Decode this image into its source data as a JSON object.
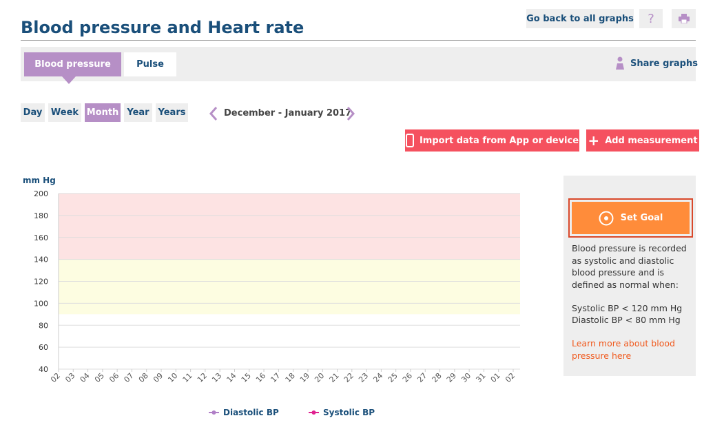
{
  "header": {
    "title": "Blood pressure and Heart rate",
    "back_button": "Go back to all graphs",
    "help_button": "?"
  },
  "tabs": {
    "items": [
      "Blood pressure",
      "Pulse"
    ],
    "share": "Share graphs"
  },
  "periods": {
    "items": [
      "Day",
      "Week",
      "Month",
      "Year",
      "Years"
    ],
    "range": "December - January 2017"
  },
  "actions": {
    "import": "Import data from App or device",
    "add": "Add measurement"
  },
  "chart_data": {
    "type": "line",
    "ylabel": "mm Hg",
    "categories": [
      "02",
      "03",
      "04",
      "05",
      "06",
      "07",
      "08",
      "09",
      "10",
      "11",
      "12",
      "13",
      "14",
      "15",
      "16",
      "17",
      "18",
      "19",
      "20",
      "21",
      "22",
      "23",
      "24",
      "25",
      "26",
      "27",
      "28",
      "29",
      "30",
      "31",
      "01",
      "02"
    ],
    "series": [
      {
        "name": "Diastolic BP",
        "color": "#b07fc7"
      },
      {
        "name": "Systolic BP",
        "color": "#e0208f"
      }
    ],
    "bands": [
      {
        "from": 140,
        "to": 200,
        "color": "#fde3e3"
      },
      {
        "from": 90,
        "to": 140,
        "color": "#fdfde1"
      }
    ],
    "ylim": [
      40,
      200
    ],
    "yticks": [
      40,
      60,
      80,
      100,
      120,
      140,
      160,
      180,
      200
    ],
    "grid": true
  },
  "sidebar": {
    "goal_button": "Set Goal",
    "info": "Blood pressure is recorded as systolic and diastolic blood pressure and is defined as normal when:",
    "rules": [
      "Systolic BP < 120 mm Hg",
      "Diastolic BP < 80 mm Hg"
    ],
    "link": "Learn more about blood pressure here"
  }
}
